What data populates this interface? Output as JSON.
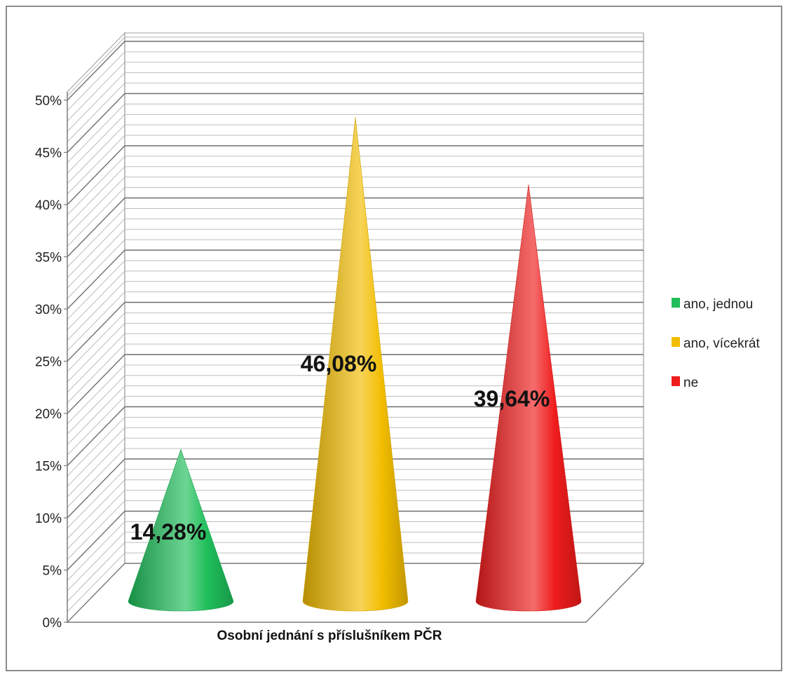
{
  "chart_data": {
    "type": "bar",
    "shape": "cone",
    "xlabel": "Osobní jednání s příslušníkem PČR",
    "ylabel": "",
    "ylim": [
      0,
      50
    ],
    "y_tick_step": 5,
    "y_tick_labels": [
      "0%",
      "5%",
      "10%",
      "15%",
      "20%",
      "25%",
      "30%",
      "35%",
      "40%",
      "45%",
      "50%"
    ],
    "grid": true,
    "legend_position": "right",
    "categories": [
      "Osobní jednání s příslušníkem PČR"
    ],
    "series": [
      {
        "name": "ano, jednou",
        "value": 14.28,
        "label": "14,28%",
        "color": "#1fbe5a"
      },
      {
        "name": "ano, vícekrát",
        "value": 46.08,
        "label": "46,08%",
        "color": "#f2bd00"
      },
      {
        "name": "ne",
        "value": 39.64,
        "label": "39,64%",
        "color": "#ef1c1c"
      }
    ]
  }
}
